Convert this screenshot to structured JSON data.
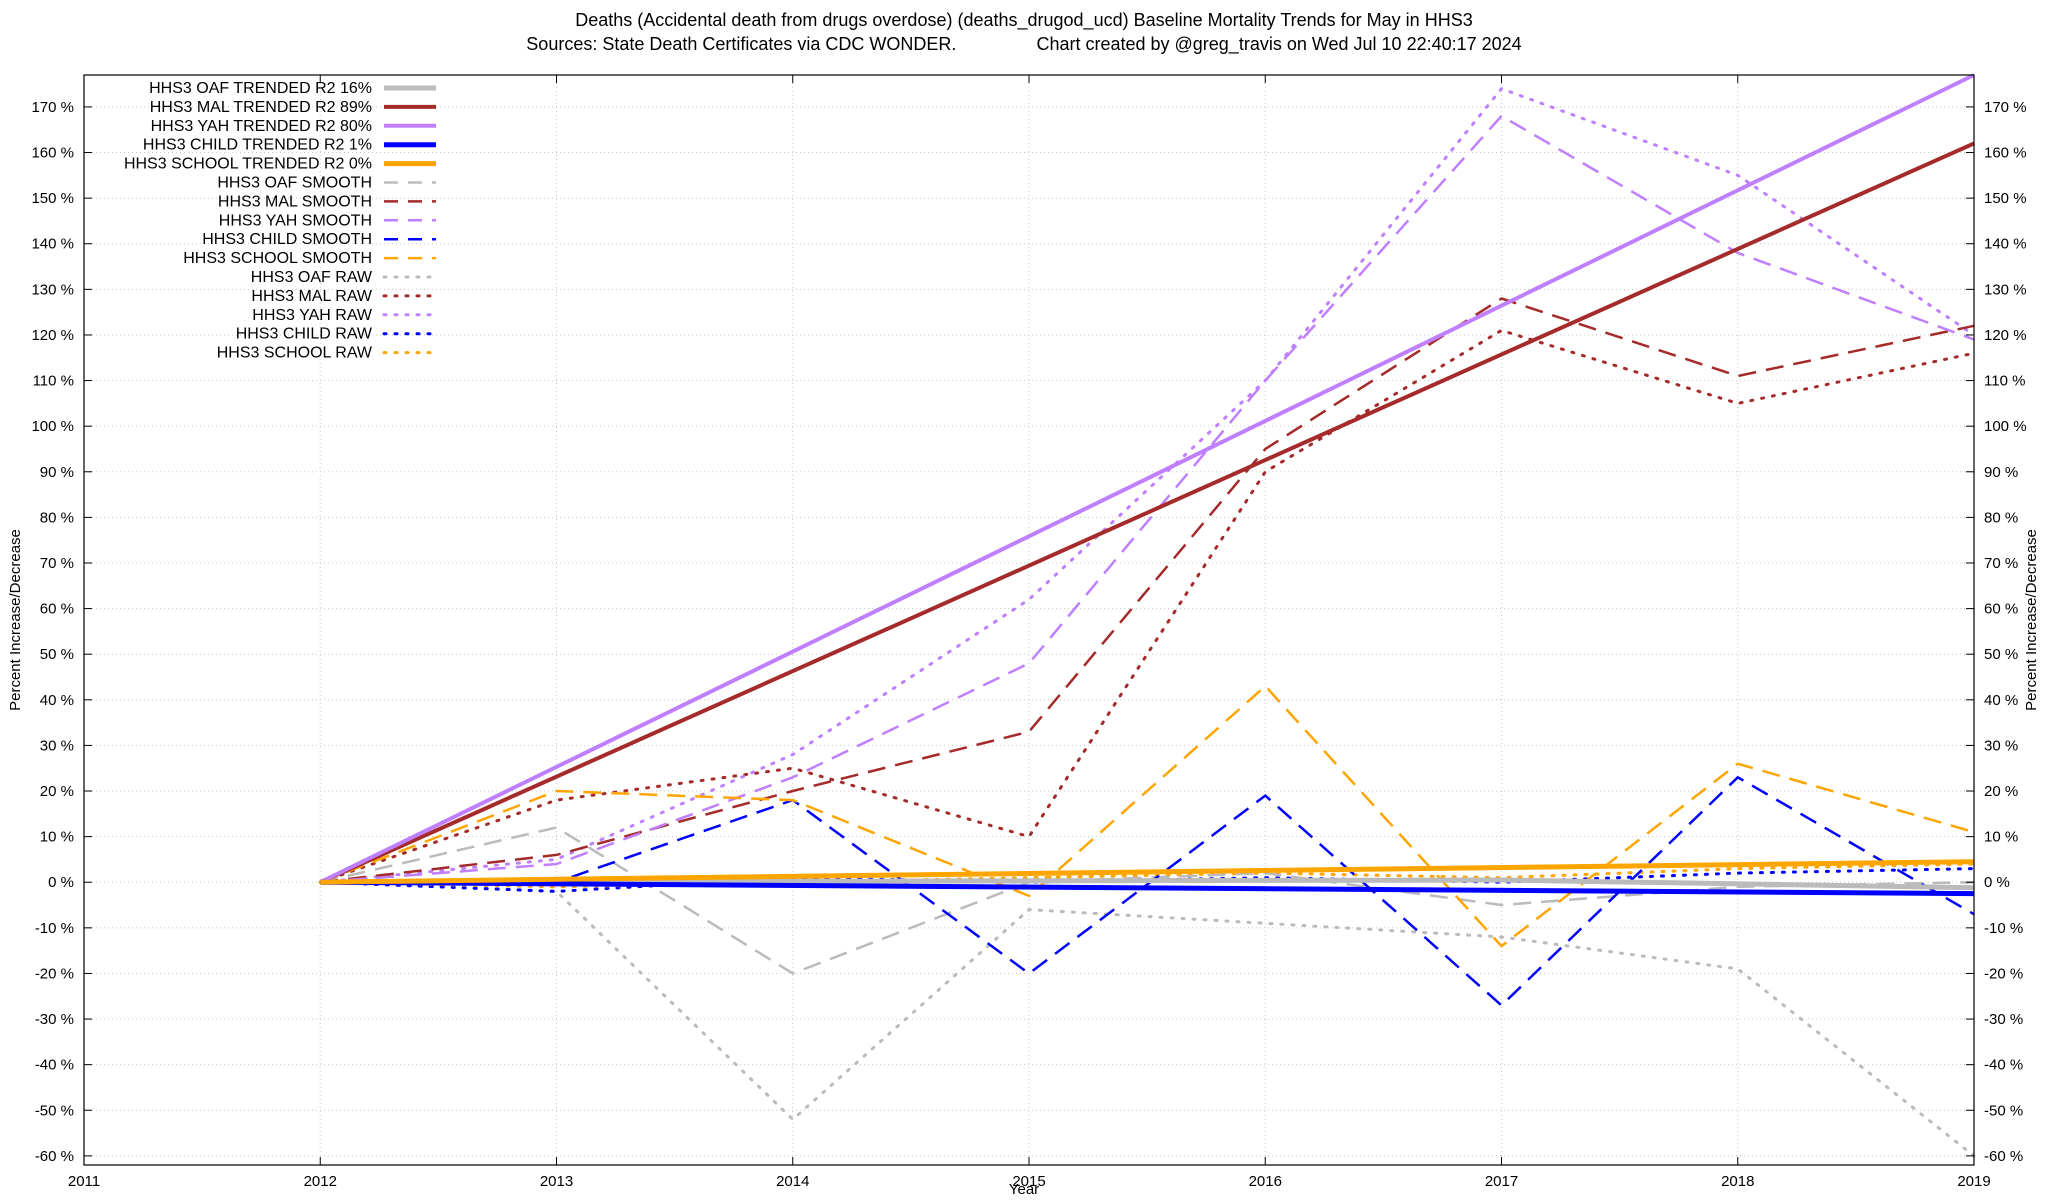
{
  "chart_data": {
    "type": "line",
    "title_line1": "Deaths (Accidental death from drugs overdose) (deaths_drugod_ucd)  Baseline Mortality Trends for May in HHS3",
    "title_line2": "Sources: State Death Certificates via CDC WONDER.                Chart created by @greg_travis on Wed Jul 10 22:40:17 2024",
    "xlabel": "Year",
    "ylabel": "Percent Increase/Decrease",
    "xlim": [
      2011,
      2019
    ],
    "ylim": [
      -62,
      177
    ],
    "x_ticks": [
      "2011",
      "2012",
      "2013",
      "2014",
      "2015",
      "2016",
      "2017",
      "2018",
      "2019"
    ],
    "y_ticks_left": [
      "170 %",
      "160 %",
      "150 %",
      "140 %",
      "130 %",
      "120 %",
      "110 %",
      "100 %",
      "90 %",
      "80 %",
      "70 %",
      "60 %",
      "50 %",
      "40 %",
      "30 %",
      "20 %",
      "10 %",
      "0 %",
      "-10 %",
      "-20 %",
      "-30 %",
      "-40 %",
      "-50 %",
      "-60 %"
    ],
    "y_ticks_right": [
      "170 %",
      "160 %",
      "150 %",
      "140 %",
      "130 %",
      "120 %",
      "110 %",
      "100 %",
      "90 %",
      "80 %",
      "70 %",
      "60 %",
      "50 %",
      "40 %",
      "30 %",
      "20 %",
      "10 %",
      "0 %",
      "-10 %",
      "-20 %",
      "-30 %",
      "-40 %",
      "-50 %",
      "-60 %"
    ],
    "y_tick_values": [
      170,
      160,
      150,
      140,
      130,
      120,
      110,
      100,
      90,
      80,
      70,
      60,
      50,
      40,
      30,
      20,
      10,
      0,
      -10,
      -20,
      -30,
      -40,
      -50,
      -60
    ],
    "grid": true,
    "legend_position": "top-left",
    "series": [
      {
        "name": "HHS3 OAF TRENDED R2  16%",
        "style": "solid",
        "color": "#bbbbbb",
        "width": 5,
        "x": [
          2012,
          2017,
          2019
        ],
        "y": [
          0,
          0.5,
          -1.2
        ]
      },
      {
        "name": "HHS3 MAL TRENDED R2  89%",
        "style": "solid",
        "color": "#a52a2a",
        "width": 4,
        "x": [
          2012,
          2019
        ],
        "y": [
          0,
          162
        ]
      },
      {
        "name": "HHS3 YAH TRENDED R2  80%",
        "style": "solid",
        "color": "#bf7fff",
        "width": 4,
        "x": [
          2012,
          2019
        ],
        "y": [
          0,
          177
        ]
      },
      {
        "name": "HHS3 CHILD TRENDED R2   1%",
        "style": "solid",
        "color": "#0000ff",
        "width": 5,
        "x": [
          2012,
          2019
        ],
        "y": [
          0,
          -2.5
        ]
      },
      {
        "name": "HHS3 SCHOOL TRENDED R2   0%",
        "style": "solid",
        "color": "#ffa500",
        "width": 5,
        "x": [
          2012,
          2019
        ],
        "y": [
          0,
          4.5
        ]
      },
      {
        "name": "HHS3 OAF SMOOTH",
        "style": "dashed",
        "color": "#bbbbbb",
        "width": 2.5,
        "x": [
          2012,
          2013,
          2014,
          2015,
          2016,
          2017,
          2018,
          2019
        ],
        "y": [
          0,
          12,
          -20,
          0,
          2,
          -5,
          -1,
          0
        ]
      },
      {
        "name": "HHS3 MAL SMOOTH",
        "style": "dashed",
        "color": "#a52a2a",
        "width": 2.5,
        "x": [
          2012,
          2013,
          2014,
          2015,
          2016,
          2017,
          2018,
          2019
        ],
        "y": [
          0,
          6,
          20,
          33,
          95,
          128,
          111,
          122
        ]
      },
      {
        "name": "HHS3 YAH SMOOTH",
        "style": "dashed",
        "color": "#bf7fff",
        "width": 2.5,
        "x": [
          2012,
          2013,
          2014,
          2015,
          2016,
          2017,
          2018,
          2019
        ],
        "y": [
          0,
          4,
          23,
          48,
          110,
          168,
          138,
          119
        ]
      },
      {
        "name": "HHS3 CHILD SMOOTH",
        "style": "dashed",
        "color": "#0000ff",
        "width": 2.5,
        "x": [
          2012,
          2013,
          2014,
          2015,
          2016,
          2017,
          2018,
          2019
        ],
        "y": [
          0,
          0,
          18,
          -20,
          19,
          -27,
          23,
          -7
        ]
      },
      {
        "name": "HHS3 SCHOOL SMOOTH",
        "style": "dashed",
        "color": "#ffa500",
        "width": 2.5,
        "x": [
          2012,
          2013,
          2014,
          2015,
          2016,
          2017,
          2018,
          2019
        ],
        "y": [
          0,
          20,
          18,
          -3,
          43,
          -14,
          26,
          11
        ]
      },
      {
        "name": "HHS3 OAF RAW",
        "style": "dotted",
        "color": "#bbbbbb",
        "width": 3,
        "x": [
          2012,
          2013,
          2014,
          2015,
          2016,
          2017,
          2018,
          2019
        ],
        "y": [
          0,
          -2,
          -52,
          -6,
          -9,
          -12,
          -19,
          -60
        ]
      },
      {
        "name": "HHS3 MAL RAW",
        "style": "dotted",
        "color": "#a52a2a",
        "width": 3,
        "x": [
          2012,
          2013,
          2014,
          2015,
          2016,
          2017,
          2018,
          2019
        ],
        "y": [
          0,
          18,
          25,
          10,
          90,
          121,
          105,
          116
        ]
      },
      {
        "name": "HHS3 YAH RAW",
        "style": "dotted",
        "color": "#bf7fff",
        "width": 3,
        "x": [
          2012,
          2013,
          2014,
          2015,
          2016,
          2017,
          2018,
          2019
        ],
        "y": [
          0,
          5,
          28,
          62,
          110,
          174,
          155,
          120
        ]
      },
      {
        "name": "HHS3 CHILD RAW",
        "style": "dotted",
        "color": "#0000ff",
        "width": 3,
        "x": [
          2012,
          2013,
          2014,
          2015,
          2016,
          2017,
          2018,
          2019
        ],
        "y": [
          0,
          -2,
          1,
          0,
          1,
          0,
          2,
          3
        ]
      },
      {
        "name": "HHS3 SCHOOL RAW",
        "style": "dotted",
        "color": "#ffa500",
        "width": 3,
        "x": [
          2012,
          2013,
          2014,
          2015,
          2016,
          2017,
          2018,
          2019
        ],
        "y": [
          0,
          -1,
          0,
          1,
          2,
          1,
          3,
          4
        ]
      }
    ]
  }
}
